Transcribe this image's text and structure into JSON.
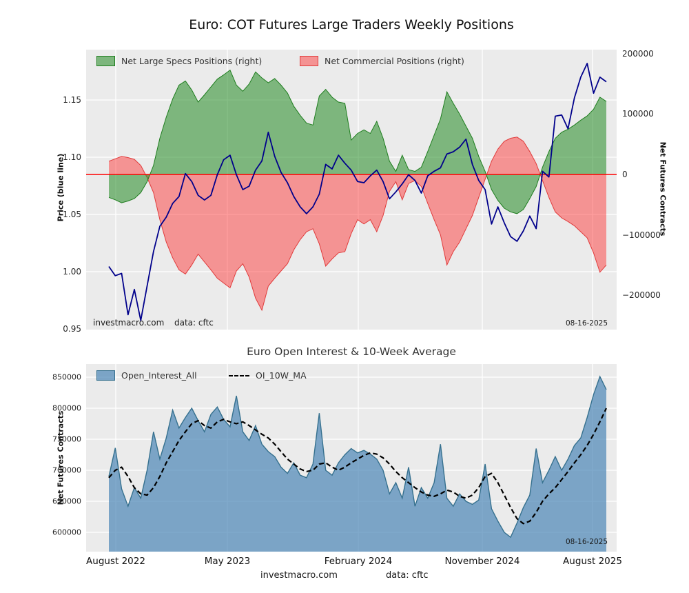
{
  "header": {
    "title": "Euro: COT Futures Large Traders Weekly Positions"
  },
  "top_chart": {
    "ylabel_left": "Price (blue line)",
    "ylabel_right": "Net Futures Contracts",
    "legend": [
      {
        "label": "Net Large Specs Positions (right)"
      },
      {
        "label": "Net Commercial Positions (right)"
      }
    ],
    "yticks_left": [
      "1.15",
      "1.10",
      "1.05",
      "1.00",
      "0.95"
    ],
    "yticks_right": [
      "200000",
      "100000",
      "0",
      "−100000",
      "−200000"
    ],
    "watermark": "investmacro.com",
    "source": "data: cftc",
    "date": "08-16-2025"
  },
  "bottom_chart": {
    "title": "Euro Open Interest & 10-Week Average",
    "ylabel": "Net Futures Contracts",
    "legend": [
      {
        "label": "Open_Interest_All"
      },
      {
        "label": "OI_10W_MA"
      }
    ],
    "yticks": [
      "850000",
      "800000",
      "750000",
      "700000",
      "650000",
      "600000"
    ],
    "xticks": [
      "August 2022",
      "May 2023",
      "February 2024",
      "November 2024",
      "August 2025"
    ],
    "date": "08-16-2025"
  },
  "footer": {
    "site": "investmacro.com",
    "source": "data: cftc"
  },
  "colors": {
    "plot_background": "#ebebeb",
    "grid": "#ffffff",
    "zero_line": "#ff0000",
    "price_line": "#00008b",
    "specs_green": "#228b22",
    "commercials_red": "#ff2828",
    "open_interest_blue": "#4682b4",
    "ma_black": "#000000"
  },
  "chart_data": [
    {
      "type": "area",
      "title": "Euro: COT Futures Large Traders Weekly Positions",
      "x_range": [
        "August 2022",
        "August 2025"
      ],
      "sampling": "weekly series, ~2-week samples, 79 points",
      "ylabel_left": "Price (blue line)",
      "ylabel_right": "Net Futures Contracts",
      "ylim_left": [
        0.95,
        1.19
      ],
      "ylim_right": [
        -257000,
        207000
      ],
      "yticks_left": [
        1.15,
        1.1,
        1.05,
        1.0,
        0.95
      ],
      "yticks_right": [
        200000,
        100000,
        0,
        -100000,
        -200000
      ],
      "grid": true,
      "legend_position": "upper left",
      "zero_line": {
        "axis": "right",
        "value": 0
      },
      "annotations": [
        "investmacro.com",
        "data: cftc",
        "08-16-2025"
      ],
      "series": [
        {
          "name": "Price",
          "style": "line",
          "axis": "left",
          "color": "#00008b",
          "values": [
            1.005,
            0.997,
            0.999,
            0.963,
            0.985,
            0.958,
            0.988,
            1.018,
            1.04,
            1.048,
            1.06,
            1.066,
            1.086,
            1.079,
            1.067,
            1.063,
            1.067,
            1.085,
            1.098,
            1.102,
            1.085,
            1.072,
            1.075,
            1.089,
            1.097,
            1.122,
            1.101,
            1.087,
            1.078,
            1.066,
            1.057,
            1.051,
            1.057,
            1.068,
            1.094,
            1.09,
            1.102,
            1.095,
            1.089,
            1.079,
            1.078,
            1.084,
            1.089,
            1.079,
            1.064,
            1.07,
            1.077,
            1.085,
            1.08,
            1.069,
            1.084,
            1.088,
            1.091,
            1.103,
            1.105,
            1.109,
            1.116,
            1.094,
            1.08,
            1.072,
            1.042,
            1.057,
            1.043,
            1.031,
            1.027,
            1.036,
            1.049,
            1.038,
            1.088,
            1.083,
            1.136,
            1.137,
            1.125,
            1.152,
            1.17,
            1.182,
            1.156,
            1.17,
            1.166
          ]
        },
        {
          "name": "Net Large Specs Positions (right)",
          "style": "area",
          "axis": "right",
          "color": "#228b22",
          "edge": "#1e7d1e",
          "values": [
            -38000,
            -42000,
            -47000,
            -44000,
            -40000,
            -30000,
            -12000,
            15000,
            60000,
            95000,
            125000,
            148000,
            155000,
            140000,
            120000,
            132000,
            145000,
            158000,
            165000,
            173000,
            148000,
            138000,
            150000,
            170000,
            160000,
            152000,
            159000,
            148000,
            135000,
            113000,
            98000,
            85000,
            82000,
            130000,
            141000,
            128000,
            120000,
            118000,
            57000,
            68000,
            74000,
            68000,
            88000,
            60000,
            22000,
            5000,
            32000,
            8000,
            5000,
            12000,
            38000,
            65000,
            92000,
            137000,
            118000,
            100000,
            80000,
            60000,
            30000,
            5000,
            -25000,
            -43000,
            -56000,
            -62000,
            -65000,
            -58000,
            -40000,
            -20000,
            12000,
            38000,
            60000,
            70000,
            75000,
            82000,
            90000,
            97000,
            108000,
            128000,
            121000
          ]
        },
        {
          "name": "Net Commercial Positions (right)",
          "style": "area",
          "axis": "right",
          "color": "#ff2828",
          "edge": "#e03a3a",
          "values": [
            22000,
            26000,
            30000,
            28000,
            25000,
            15000,
            -5000,
            -30000,
            -75000,
            -112000,
            -138000,
            -158000,
            -165000,
            -150000,
            -132000,
            -145000,
            -158000,
            -172000,
            -180000,
            -188000,
            -160000,
            -148000,
            -170000,
            -205000,
            -225000,
            -185000,
            -172000,
            -160000,
            -148000,
            -125000,
            -108000,
            -95000,
            -90000,
            -115000,
            -152000,
            -140000,
            -130000,
            -128000,
            -98000,
            -75000,
            -82000,
            -75000,
            -95000,
            -68000,
            -28000,
            -12000,
            -42000,
            -15000,
            -10000,
            -20000,
            -48000,
            -75000,
            -100000,
            -150000,
            -128000,
            -112000,
            -90000,
            -68000,
            -38000,
            -8000,
            22000,
            42000,
            55000,
            60000,
            62000,
            55000,
            38000,
            18000,
            -10000,
            -38000,
            -62000,
            -72000,
            -78000,
            -85000,
            -95000,
            -105000,
            -130000,
            -162000,
            -150000
          ]
        }
      ]
    },
    {
      "type": "area",
      "title": "Euro Open Interest & 10-Week Average",
      "x_range": [
        "August 2022",
        "August 2025"
      ],
      "sampling": "weekly series, ~2-week samples, 79 points",
      "ylabel": "Net Futures Contracts",
      "ylim": [
        569000,
        871000
      ],
      "yticks": [
        850000,
        800000,
        750000,
        700000,
        650000,
        600000
      ],
      "xticklabels": [
        "August 2022",
        "May 2023",
        "February 2024",
        "November 2024",
        "August 2025"
      ],
      "grid": true,
      "legend_position": "upper left",
      "annotations": [
        "08-16-2025",
        "investmacro.com",
        "data: cftc"
      ],
      "series": [
        {
          "name": "Open_Interest_All",
          "style": "area",
          "color": "#4682b4",
          "edge": "#35708e",
          "values": [
            690000,
            736000,
            670000,
            642000,
            672000,
            655000,
            700000,
            762000,
            718000,
            752000,
            797000,
            768000,
            785000,
            800000,
            780000,
            762000,
            790000,
            802000,
            782000,
            770000,
            820000,
            762000,
            748000,
            772000,
            742000,
            730000,
            722000,
            705000,
            695000,
            712000,
            692000,
            688000,
            710000,
            792000,
            700000,
            692000,
            712000,
            725000,
            735000,
            728000,
            732000,
            726000,
            718000,
            700000,
            662000,
            680000,
            655000,
            705000,
            642000,
            672000,
            655000,
            680000,
            742000,
            655000,
            642000,
            662000,
            650000,
            645000,
            652000,
            710000,
            638000,
            618000,
            600000,
            592000,
            615000,
            640000,
            660000,
            735000,
            680000,
            700000,
            722000,
            700000,
            718000,
            740000,
            752000,
            785000,
            822000,
            851000,
            830000
          ]
        },
        {
          "name": "OI_10W_MA",
          "style": "dashed-line",
          "color": "#000000",
          "values": [
            688000,
            700000,
            705000,
            690000,
            672000,
            662000,
            660000,
            672000,
            690000,
            712000,
            730000,
            748000,
            762000,
            775000,
            780000,
            772000,
            768000,
            778000,
            782000,
            778000,
            775000,
            778000,
            772000,
            765000,
            758000,
            752000,
            742000,
            730000,
            718000,
            710000,
            702000,
            698000,
            700000,
            710000,
            712000,
            705000,
            700000,
            705000,
            712000,
            718000,
            724000,
            728000,
            726000,
            720000,
            710000,
            698000,
            688000,
            680000,
            672000,
            665000,
            660000,
            658000,
            662000,
            668000,
            665000,
            658000,
            655000,
            660000,
            672000,
            690000,
            695000,
            680000,
            660000,
            640000,
            622000,
            614000,
            618000,
            632000,
            650000,
            662000,
            672000,
            685000,
            698000,
            712000,
            725000,
            740000,
            758000,
            778000,
            800000
          ]
        }
      ]
    }
  ]
}
